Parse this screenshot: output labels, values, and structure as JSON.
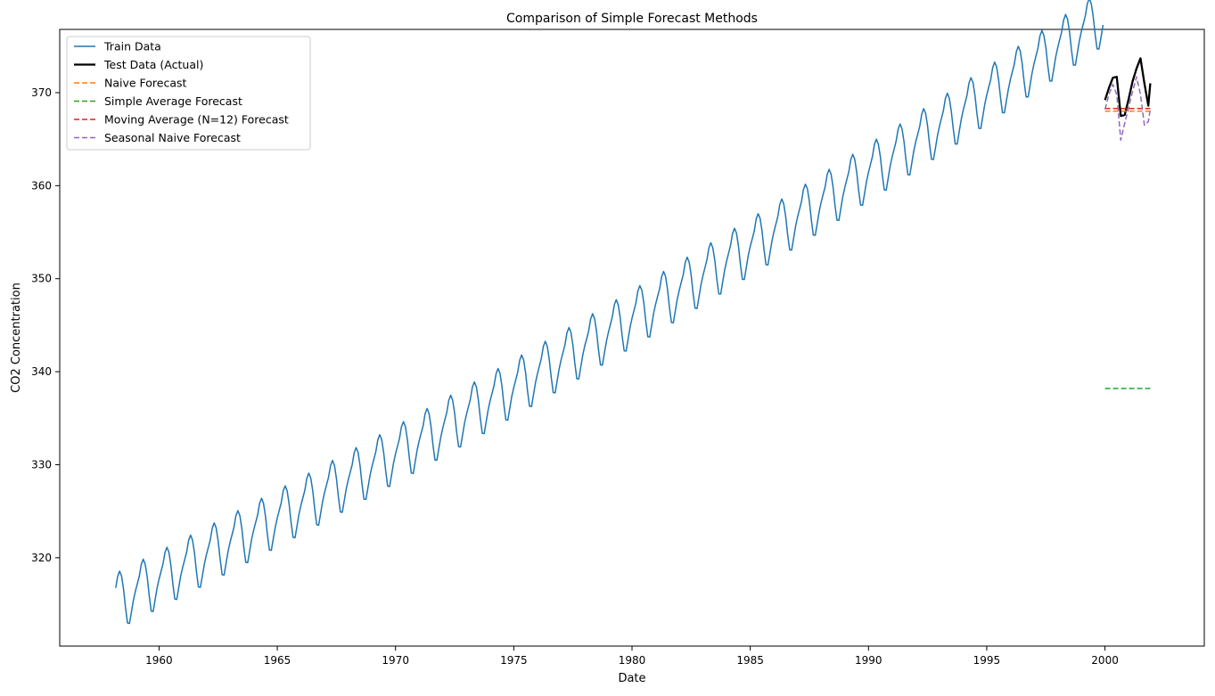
{
  "chart_data": {
    "type": "line",
    "title": "Comparison of Simple Forecast Methods",
    "xlabel": "Date",
    "ylabel": "CO2 Concentration",
    "xlim": [
      1955.8,
      2004.2
    ],
    "ylim": [
      310.5,
      376.8
    ],
    "x_ticks": [
      1960,
      1965,
      1970,
      1975,
      1980,
      1985,
      1990,
      1995,
      2000
    ],
    "y_ticks": [
      320,
      330,
      340,
      350,
      360,
      370
    ],
    "grid": false,
    "legend_position": "top-left",
    "series": [
      {
        "name": "Train Data",
        "color": "#1f77b4",
        "style": "solid",
        "x_start": "1958-03",
        "frequency": "monthly",
        "trend_start_value": 315.4,
        "trend_slope_per_year": 1.27,
        "trend_curvature": 0.0056,
        "seasonal_amplitude": 2.7,
        "values_note": "monthly values 1958-03 through 1999-12"
      },
      {
        "name": "Test Data (Actual)",
        "color": "#000000",
        "style": "solid",
        "x": [
          "2000-01",
          "2000-03",
          "2000-05",
          "2000-07",
          "2000-09",
          "2000-11",
          "2001-01",
          "2001-03",
          "2001-05",
          "2001-07",
          "2001-09",
          "2001-11",
          "2001-12"
        ],
        "y": [
          369.2,
          370.5,
          371.6,
          371.7,
          367.5,
          367.6,
          369.3,
          371.2,
          372.6,
          373.7,
          371.0,
          368.6,
          371.0
        ]
      },
      {
        "name": "Naive Forecast",
        "color": "#ff7f0e",
        "style": "dashed",
        "x": [
          "2000-01",
          "2001-12"
        ],
        "y": [
          368.0,
          368.0
        ]
      },
      {
        "name": "Simple Average Forecast",
        "color": "#2ca02c",
        "style": "dashed",
        "x": [
          "2000-01",
          "2001-12"
        ],
        "y": [
          338.2,
          338.2
        ]
      },
      {
        "name": "Moving Average (N=12) Forecast",
        "color": "#d62728",
        "style": "dashed",
        "x": [
          "2000-01",
          "2001-12"
        ],
        "y": [
          368.3,
          368.3
        ]
      },
      {
        "name": "Seasonal Naive Forecast",
        "color": "#9467bd",
        "style": "dashed",
        "x": [
          "2000-01",
          "2000-03",
          "2000-05",
          "2000-07",
          "2000-09",
          "2000-11",
          "2001-01",
          "2001-03",
          "2001-05",
          "2001-07",
          "2001-09",
          "2001-11",
          "2001-12"
        ],
        "y": [
          368.2,
          369.8,
          370.9,
          369.8,
          364.9,
          366.7,
          368.4,
          370.1,
          371.7,
          369.8,
          366.5,
          366.9,
          368.2
        ]
      }
    ]
  }
}
